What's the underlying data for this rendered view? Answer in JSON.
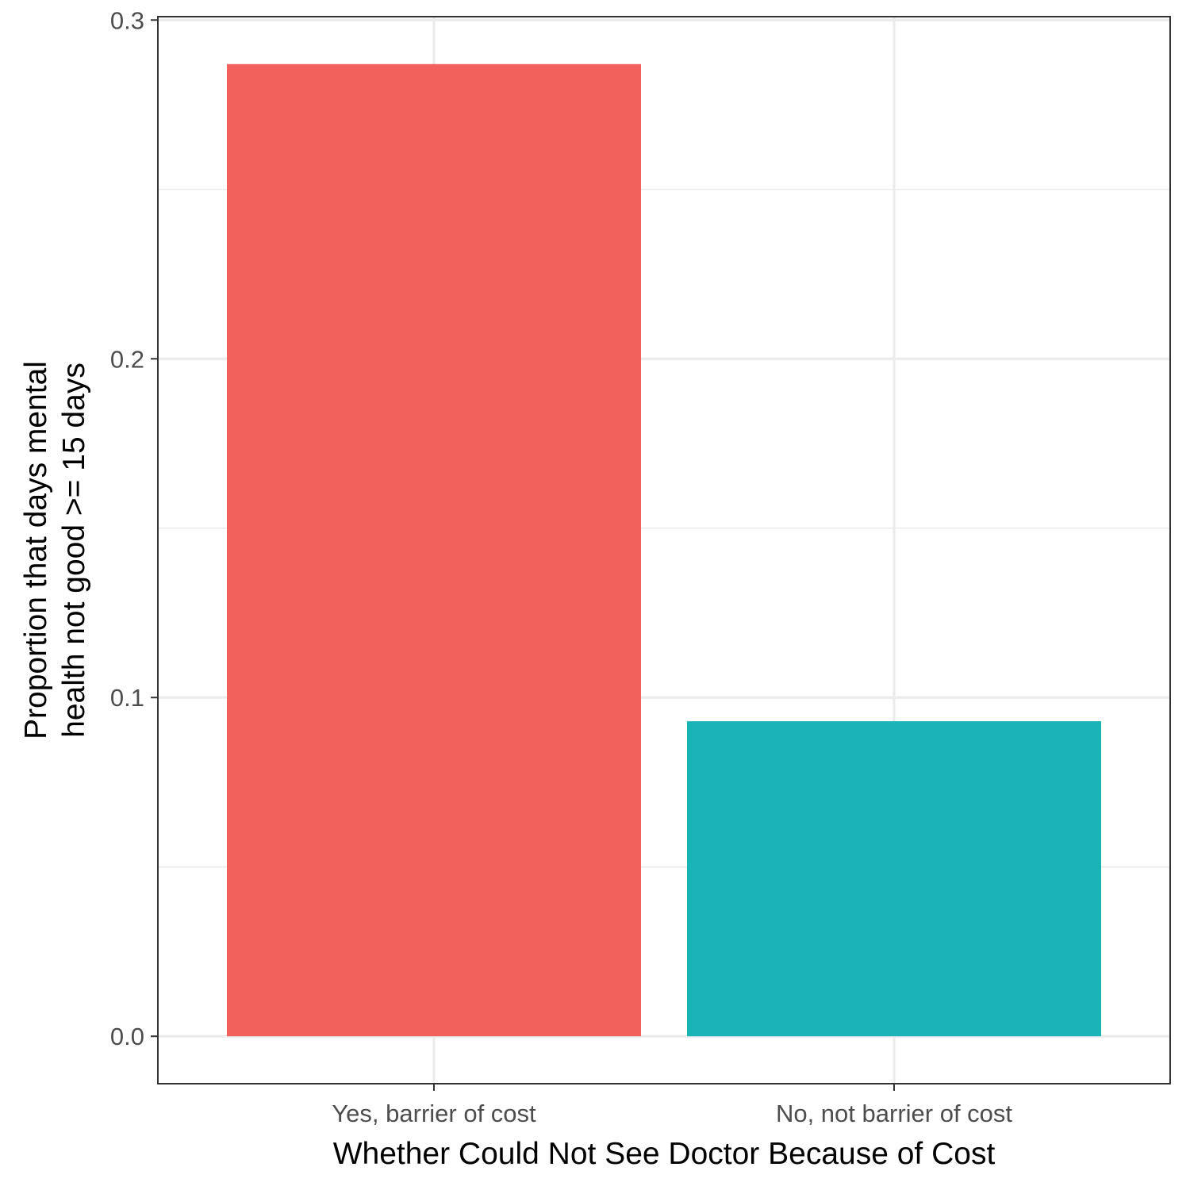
{
  "chart_data": {
    "type": "bar",
    "categories": [
      "Yes, barrier of cost",
      "No, not barrier of cost"
    ],
    "values": [
      0.287,
      0.093
    ],
    "colors": [
      "#F2615C",
      "#1AB3B8"
    ],
    "xlabel": "Whether Could Not See Doctor Because of Cost",
    "ylabel_lines": [
      "Proportion that days mental",
      "health not good >= 15 days"
    ],
    "ylim": [
      -0.014,
      0.301
    ],
    "yticks": [
      0.0,
      0.1,
      0.2,
      0.3
    ],
    "ytick_labels": [
      "0.0",
      "0.1",
      "0.2",
      "0.3"
    ],
    "grid": true,
    "legend": "none",
    "theme": "bw"
  }
}
